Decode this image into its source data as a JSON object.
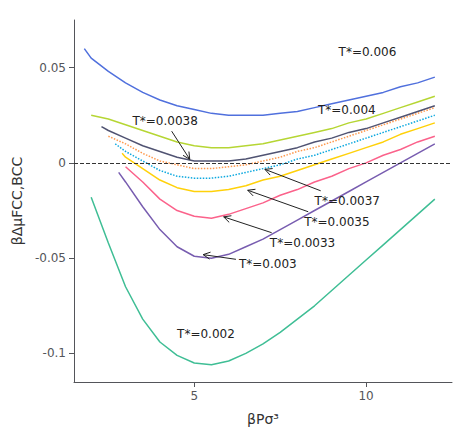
{
  "chart_data": {
    "type": "line",
    "xlabel": "βPσ³",
    "ylabel": "βΔμFCC,BCC",
    "xlim": [
      1.5,
      12.5
    ],
    "ylim": [
      -0.115,
      0.075
    ],
    "xticks": [
      5,
      10
    ],
    "yticks": [
      -0.1,
      -0.05,
      0,
      0.05
    ],
    "grid": false,
    "hline": {
      "y": 0.0,
      "line_style": "dashed"
    },
    "series": [
      {
        "line_style": "solid",
        "x": [
          1.8,
          2.0,
          2.5,
          3.0,
          3.5,
          4.0,
          4.5,
          5.0,
          5.5,
          6.0,
          6.5,
          7.0,
          7.5,
          8.0,
          8.5,
          9.0,
          9.5,
          10.0,
          10.5,
          11.0,
          11.5,
          12.0
        ],
        "values": [
          0.06,
          0.055,
          0.048,
          0.042,
          0.037,
          0.033,
          0.03,
          0.028,
          0.026,
          0.025,
          0.025,
          0.025,
          0.026,
          0.027,
          0.029,
          0.031,
          0.033,
          0.035,
          0.037,
          0.04,
          0.042,
          0.045
        ]
      },
      {
        "line_style": "solid",
        "x": [
          2.0,
          2.5,
          3.0,
          3.5,
          4.0,
          4.5,
          5.0,
          5.5,
          6.0,
          6.5,
          7.0,
          7.5,
          8.0,
          8.5,
          9.0,
          9.5,
          10.0,
          10.5,
          11.0,
          11.5,
          12.0
        ],
        "values": [
          0.025,
          0.023,
          0.02,
          0.017,
          0.014,
          0.011,
          0.009,
          0.008,
          0.008,
          0.009,
          0.01,
          0.012,
          0.014,
          0.016,
          0.018,
          0.021,
          0.023,
          0.026,
          0.029,
          0.032,
          0.035
        ]
      },
      {
        "line_style": "solid",
        "x": [
          2.3,
          2.5,
          3.0,
          3.5,
          4.0,
          4.5,
          5.0,
          5.5,
          6.0,
          6.5,
          7.0,
          7.5,
          8.0,
          8.5,
          9.0,
          9.5,
          10.0,
          10.5,
          11.0,
          11.5,
          12.0
        ],
        "values": [
          0.019,
          0.017,
          0.013,
          0.009,
          0.006,
          0.003,
          0.001,
          0.001,
          0.001,
          0.002,
          0.004,
          0.006,
          0.008,
          0.011,
          0.013,
          0.016,
          0.018,
          0.021,
          0.024,
          0.027,
          0.03
        ]
      },
      {
        "line_style": "dotted",
        "x": [
          2.5,
          3.0,
          3.5,
          4.0,
          4.5,
          5.0,
          5.5,
          6.0,
          6.5,
          7.0,
          7.5,
          8.0,
          8.5,
          9.0,
          9.5,
          10.0,
          10.5,
          11.0,
          11.5,
          12.0
        ],
        "values": [
          0.014,
          0.01,
          0.005,
          0.001,
          -0.001,
          -0.003,
          -0.003,
          -0.002,
          -0.001,
          0.001,
          0.003,
          0.006,
          0.008,
          0.011,
          0.014,
          0.017,
          0.02,
          0.023,
          0.026,
          0.029
        ]
      },
      {
        "line_style": "dotted",
        "x": [
          2.7,
          3.0,
          3.5,
          4.0,
          4.5,
          5.0,
          5.5,
          6.0,
          6.5,
          7.0,
          7.5,
          8.0,
          8.5,
          9.0,
          9.5,
          10.0,
          10.5,
          11.0,
          11.5,
          12.0
        ],
        "values": [
          0.01,
          0.006,
          0.001,
          -0.004,
          -0.007,
          -0.008,
          -0.008,
          -0.007,
          -0.005,
          -0.003,
          -0.001,
          0.002,
          0.004,
          0.007,
          0.01,
          0.013,
          0.016,
          0.019,
          0.022,
          0.025
        ]
      },
      {
        "line_style": "solid",
        "x": [
          2.9,
          3.0,
          3.5,
          4.0,
          4.5,
          5.0,
          5.5,
          6.0,
          6.5,
          7.0,
          7.5,
          8.0,
          8.5,
          9.0,
          9.5,
          10.0,
          10.5,
          11.0,
          11.5,
          12.0
        ],
        "values": [
          0.005,
          0.003,
          -0.003,
          -0.009,
          -0.013,
          -0.015,
          -0.015,
          -0.014,
          -0.012,
          -0.009,
          -0.007,
          -0.004,
          -0.001,
          0.002,
          0.005,
          0.008,
          0.011,
          0.015,
          0.018,
          0.021
        ]
      },
      {
        "line_style": "solid",
        "x": [
          3.0,
          3.5,
          4.0,
          4.5,
          5.0,
          5.5,
          6.0,
          6.5,
          7.0,
          7.5,
          8.0,
          8.5,
          9.0,
          9.5,
          10.0,
          10.5,
          11.0,
          11.5,
          12.0
        ],
        "values": [
          -0.002,
          -0.01,
          -0.019,
          -0.025,
          -0.028,
          -0.029,
          -0.027,
          -0.024,
          -0.021,
          -0.017,
          -0.014,
          -0.01,
          -0.007,
          -0.003,
          0.0,
          0.004,
          0.007,
          0.011,
          0.014
        ]
      },
      {
        "line_style": "solid",
        "x": [
          2.8,
          3.0,
          3.5,
          4.0,
          4.5,
          5.0,
          5.5,
          6.0,
          6.5,
          7.0,
          7.5,
          8.0,
          8.5,
          9.0,
          9.5,
          10.0,
          10.5,
          11.0,
          11.5,
          12.0
        ],
        "values": [
          -0.005,
          -0.01,
          -0.023,
          -0.035,
          -0.044,
          -0.049,
          -0.05,
          -0.048,
          -0.044,
          -0.04,
          -0.035,
          -0.03,
          -0.025,
          -0.02,
          -0.015,
          -0.01,
          -0.005,
          0.0,
          0.005,
          0.01
        ]
      },
      {
        "line_style": "solid",
        "x": [
          2.0,
          2.5,
          3.0,
          3.5,
          4.0,
          4.5,
          5.0,
          5.5,
          6.0,
          6.5,
          7.0,
          7.5,
          8.0,
          8.5,
          9.0,
          9.5,
          10.0,
          10.5,
          11.0,
          11.5,
          12.0
        ],
        "values": [
          -0.018,
          -0.042,
          -0.065,
          -0.082,
          -0.094,
          -0.101,
          -0.105,
          -0.106,
          -0.104,
          -0.1,
          -0.095,
          -0.089,
          -0.082,
          -0.075,
          -0.067,
          -0.059,
          -0.051,
          -0.043,
          -0.035,
          -0.027,
          -0.019
        ]
      }
    ],
    "annotations": [
      {
        "text": "T*=0.006",
        "x": 9.2,
        "y": 0.058
      },
      {
        "text": "T*=0.004",
        "x": 8.6,
        "y": 0.028
      },
      {
        "text": "T*=0.0038",
        "x": 3.2,
        "y": 0.022,
        "arrow_to": [
          4.9,
          0.001
        ]
      },
      {
        "text": "T*=0.0037",
        "x": 8.5,
        "y": -0.02,
        "arrow_to": [
          7.0,
          -0.003
        ]
      },
      {
        "text": "T*=0.0035",
        "x": 8.2,
        "y": -0.031,
        "arrow_to": [
          6.5,
          -0.014
        ]
      },
      {
        "text": "T*=0.0033",
        "x": 7.2,
        "y": -0.042,
        "arrow_to": [
          5.8,
          -0.028
        ]
      },
      {
        "text": "T*=0.003",
        "x": 6.3,
        "y": -0.053,
        "arrow_to": [
          5.2,
          -0.048
        ]
      },
      {
        "text": "T*=0.002",
        "x": 4.5,
        "y": -0.09
      }
    ]
  }
}
